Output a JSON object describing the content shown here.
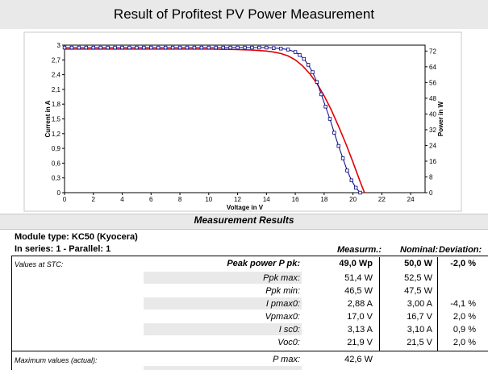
{
  "page": {
    "title": "Result of Profitest PV Power Measurement"
  },
  "chart_data": {
    "type": "line",
    "title": "",
    "xlabel": "Voltage in V",
    "ylabel": "Current in A",
    "y2label": "Power in W",
    "xlim": [
      0,
      25
    ],
    "ylim": [
      0,
      3
    ],
    "y2lim": [
      0,
      75
    ],
    "x_ticks": [
      "0",
      "2",
      "4",
      "6",
      "8",
      "10",
      "12",
      "14",
      "16",
      "18",
      "20",
      "22",
      "24"
    ],
    "y_ticks": [
      "0",
      "0,3",
      "0,6",
      "0,9",
      "1,2",
      "1,5",
      "1,8",
      "2,1",
      "2,4",
      "2,7",
      "3"
    ],
    "y2_ticks": [
      "0",
      "8",
      "16",
      "24",
      "32",
      "40",
      "48",
      "56",
      "64",
      "72"
    ],
    "grid": false,
    "series": [
      {
        "color": "#000080",
        "marker": "square",
        "x": [
          0,
          0.5,
          1,
          1.5,
          2,
          2.5,
          3,
          3.5,
          4,
          4.5,
          5,
          5.5,
          6,
          6.5,
          7,
          7.5,
          8,
          8.5,
          9,
          9.5,
          10,
          10.5,
          11,
          11.5,
          12,
          12.5,
          13,
          13.5,
          14,
          14.5,
          15,
          15.5,
          16,
          16.3,
          16.6,
          16.9,
          17.2,
          17.5,
          17.8,
          18.1,
          18.4,
          18.7,
          19,
          19.3,
          19.6,
          19.9,
          20.2,
          20.5
        ],
        "y": [
          2.95,
          2.95,
          2.95,
          2.95,
          2.95,
          2.95,
          2.95,
          2.95,
          2.95,
          2.95,
          2.95,
          2.95,
          2.95,
          2.95,
          2.95,
          2.95,
          2.95,
          2.95,
          2.95,
          2.95,
          2.95,
          2.95,
          2.95,
          2.95,
          2.95,
          2.95,
          2.95,
          2.95,
          2.95,
          2.94,
          2.93,
          2.91,
          2.86,
          2.8,
          2.72,
          2.6,
          2.45,
          2.25,
          2.0,
          1.75,
          1.5,
          1.22,
          0.95,
          0.7,
          0.45,
          0.25,
          0.1,
          0
        ]
      },
      {
        "color": "#e00000",
        "x": [
          0,
          2,
          4,
          6,
          8,
          10,
          12,
          13,
          14,
          14.5,
          15,
          15.5,
          16,
          16.5,
          17,
          17.5,
          18,
          18.5,
          19,
          19.5,
          20,
          20.5,
          20.8
        ],
        "y": [
          2.92,
          2.92,
          2.92,
          2.92,
          2.92,
          2.92,
          2.91,
          2.9,
          2.88,
          2.86,
          2.83,
          2.78,
          2.7,
          2.58,
          2.42,
          2.22,
          1.97,
          1.68,
          1.35,
          1.0,
          0.62,
          0.22,
          0
        ]
      }
    ]
  },
  "results": {
    "header": "Measurement Results",
    "module_type": "Module type: KC50 (Kyocera)",
    "series_parallel": "In series: 1  -  Parallel: 1",
    "col_measured": "Measurm.:",
    "col_nominal": "Nominal:",
    "col_deviation": "Deviation:",
    "stc_label": "Values at STC:",
    "peak": {
      "label": "Peak power P pk:",
      "measured": "49,0 Wp",
      "nominal": "50,0 W",
      "deviation": "-2,0 %"
    },
    "rows": [
      {
        "label": "Ppk max:",
        "measured": "51,4 W",
        "nominal": "52,5 W",
        "deviation": ""
      },
      {
        "label": "Ppk min:",
        "measured": "46,5 W",
        "nominal": "47,5 W",
        "deviation": ""
      },
      {
        "label": "I pmax0:",
        "measured": "2,88 A",
        "nominal": "3,00 A",
        "deviation": "-4,1 %"
      },
      {
        "label": "Vpmax0:",
        "measured": "17,0 V",
        "nominal": "16,7 V",
        "deviation": "2,0 %"
      },
      {
        "label": "I sc0:",
        "measured": "3,13 A",
        "nominal": "3,10 A",
        "deviation": "0,9 %"
      },
      {
        "label": "Voc0:",
        "measured": "21,9 V",
        "nominal": "21,5 V",
        "deviation": "2,0 %"
      }
    ],
    "max_label": "Maximum values (actual):",
    "pmax": {
      "label": "P max:",
      "measured": "42,6 W"
    }
  }
}
